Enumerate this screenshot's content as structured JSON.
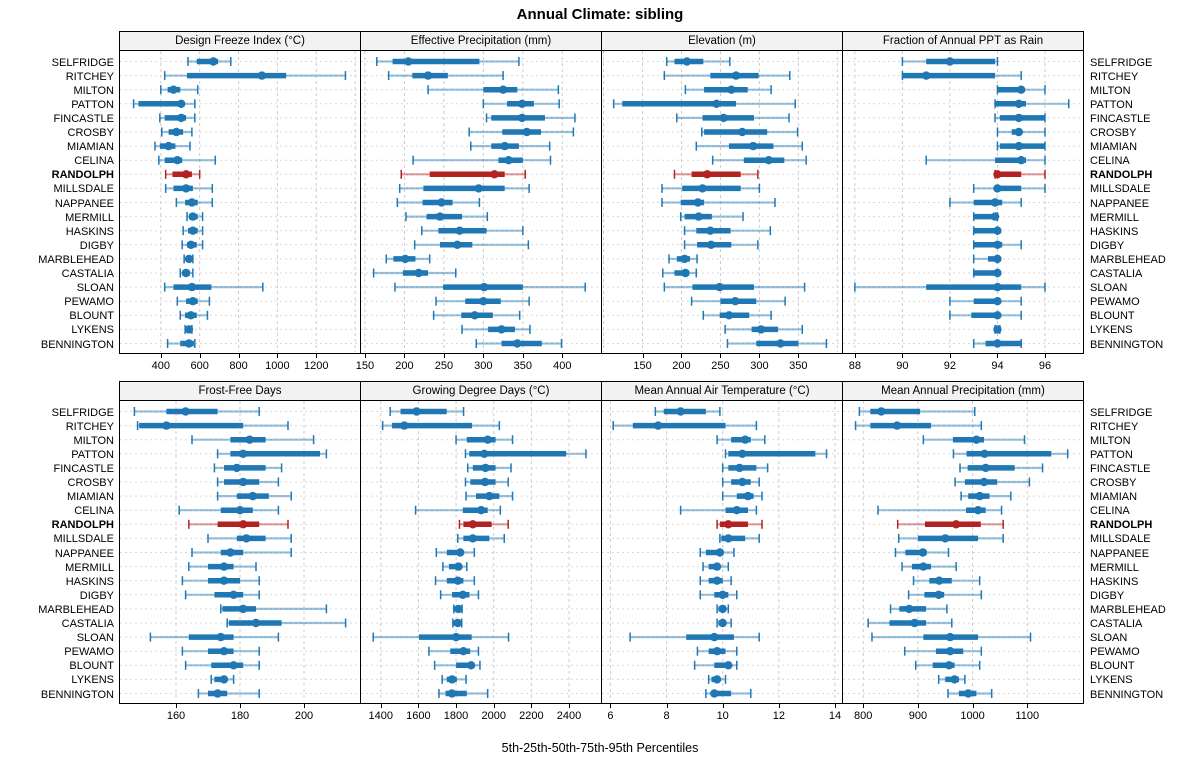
{
  "title": "Annual Climate: sibling",
  "caption": "5th-25th-50th-75th-95th Percentiles",
  "highlight_site": "RANDOLPH",
  "sites": [
    "SELFRIDGE",
    "RITCHEY",
    "MILTON",
    "PATTON",
    "FINCASTLE",
    "CROSBY",
    "MIAMIAN",
    "CELINA",
    "RANDOLPH",
    "MILLSDALE",
    "NAPPANEE",
    "MERMILL",
    "HASKINS",
    "DIGBY",
    "MARBLEHEAD",
    "CASTALIA",
    "SLOAN",
    "PEWAMO",
    "BLOUNT",
    "LYKENS",
    "BENNINGTON"
  ],
  "percentiles": [
    5,
    25,
    50,
    75,
    95
  ],
  "colors": {
    "series": "#1f77b4",
    "highlight": "#b22222",
    "grid": "#cccccc",
    "row_grid": "#d9d9d9",
    "strip_bg": "#f2f2f2",
    "border": "#000000"
  },
  "chart_data": [
    {
      "type": "interval",
      "row": 0,
      "col": 0,
      "title": "Design Freeze Index (°C)",
      "xlim": [
        190,
        1425
      ],
      "xticks": [
        400,
        600,
        800,
        1000,
        1200
      ],
      "grid_extra": [
        1400
      ],
      "values": [
        [
          540,
          585,
          670,
          695,
          760
        ],
        [
          420,
          535,
          920,
          1045,
          1350
        ],
        [
          400,
          435,
          465,
          500,
          590
        ],
        [
          260,
          285,
          505,
          515,
          575
        ],
        [
          395,
          420,
          505,
          530,
          575
        ],
        [
          405,
          440,
          480,
          515,
          560
        ],
        [
          370,
          395,
          440,
          475,
          550
        ],
        [
          390,
          420,
          485,
          510,
          680
        ],
        [
          425,
          460,
          530,
          560,
          600
        ],
        [
          425,
          465,
          530,
          565,
          665
        ],
        [
          480,
          525,
          560,
          590,
          665
        ],
        [
          535,
          545,
          565,
          590,
          615
        ],
        [
          515,
          540,
          565,
          590,
          615
        ],
        [
          510,
          535,
          555,
          585,
          615
        ],
        [
          520,
          530,
          545,
          555,
          565
        ],
        [
          500,
          510,
          530,
          550,
          565
        ],
        [
          420,
          465,
          560,
          660,
          925
        ],
        [
          485,
          530,
          565,
          590,
          650
        ],
        [
          500,
          525,
          555,
          585,
          640
        ],
        [
          525,
          535,
          545,
          555,
          560
        ],
        [
          435,
          500,
          545,
          570,
          575
        ]
      ]
    },
    {
      "type": "interval",
      "row": 0,
      "col": 1,
      "title": "Effective Precipitation (mm)",
      "xlim": [
        145,
        449
      ],
      "xticks": [
        150,
        200,
        250,
        300,
        350,
        400
      ],
      "grid_extra": [],
      "values": [
        [
          165,
          185,
          205,
          295,
          345
        ],
        [
          180,
          210,
          230,
          255,
          325
        ],
        [
          230,
          300,
          325,
          343,
          395
        ],
        [
          300,
          330,
          349,
          364,
          396
        ],
        [
          304,
          310,
          349,
          378,
          416
        ],
        [
          282,
          324,
          355,
          373,
          414
        ],
        [
          284,
          310,
          327,
          345,
          384
        ],
        [
          211,
          319,
          332,
          350,
          385
        ],
        [
          196,
          232,
          314,
          327,
          353
        ],
        [
          194,
          224,
          294,
          327,
          358
        ],
        [
          191,
          223,
          247,
          261,
          295
        ],
        [
          202,
          228,
          245,
          273,
          305
        ],
        [
          222,
          243,
          270,
          304,
          350
        ],
        [
          213,
          245,
          267,
          286,
          357
        ],
        [
          177,
          186,
          201,
          214,
          232
        ],
        [
          161,
          198,
          218,
          230,
          265
        ],
        [
          188,
          249,
          301,
          350,
          429
        ],
        [
          240,
          277,
          300,
          322,
          358
        ],
        [
          237,
          272,
          289,
          312,
          346
        ],
        [
          273,
          306,
          323,
          340,
          359
        ],
        [
          291,
          323,
          343,
          374,
          399
        ]
      ]
    },
    {
      "type": "interval",
      "row": 0,
      "col": 2,
      "title": "Elevation (m)",
      "xlim": [
        98,
        406
      ],
      "xticks": [
        150,
        200,
        250,
        300,
        350
      ],
      "grid_extra": [
        100,
        400
      ],
      "values": [
        [
          181,
          191,
          207,
          228,
          262
        ],
        [
          178,
          237,
          270,
          299,
          339
        ],
        [
          205,
          229,
          264,
          285,
          315
        ],
        [
          113,
          124,
          245,
          270,
          346
        ],
        [
          194,
          227,
          254,
          293,
          338
        ],
        [
          226,
          229,
          278,
          310,
          349
        ],
        [
          219,
          261,
          292,
          318,
          355
        ],
        [
          240,
          280,
          312,
          332,
          360
        ],
        [
          191,
          213,
          233,
          276,
          298
        ],
        [
          175,
          201,
          227,
          276,
          300
        ],
        [
          175,
          199,
          221,
          229,
          320
        ],
        [
          199,
          204,
          222,
          239,
          279
        ],
        [
          204,
          219,
          237,
          263,
          314
        ],
        [
          204,
          220,
          238,
          264,
          298
        ],
        [
          184,
          194,
          204,
          211,
          220
        ],
        [
          176,
          191,
          205,
          210,
          219
        ],
        [
          178,
          214,
          249,
          293,
          358
        ],
        [
          213,
          250,
          269,
          296,
          333
        ],
        [
          228,
          249,
          261,
          287,
          315
        ],
        [
          256,
          290,
          302,
          324,
          355
        ],
        [
          259,
          296,
          327,
          350,
          386
        ]
      ]
    },
    {
      "type": "interval",
      "row": 0,
      "col": 3,
      "title": "Fraction of Annual PPT as Rain",
      "xlim": [
        87.5,
        97.6
      ],
      "xticks": [
        88,
        90,
        92,
        94,
        96
      ],
      "grid_extra": [],
      "values": [
        [
          90,
          91,
          92,
          93.9,
          94
        ],
        [
          90,
          90,
          91,
          93.9,
          95
        ],
        [
          94,
          94,
          95,
          95.1,
          96
        ],
        [
          93.9,
          93.9,
          94.9,
          95.2,
          97
        ],
        [
          93.9,
          94.1,
          94.9,
          96,
          96
        ],
        [
          94,
          94.6,
          94.9,
          95,
          96
        ],
        [
          94,
          94.1,
          94.9,
          96,
          96
        ],
        [
          91,
          93.9,
          95,
          95.2,
          96
        ],
        [
          93.9,
          93.9,
          94,
          95,
          96
        ],
        [
          93,
          93.9,
          94,
          95,
          96
        ],
        [
          92,
          93,
          93.9,
          94.2,
          95
        ],
        [
          93,
          93,
          93.9,
          94,
          94
        ],
        [
          93,
          93,
          94,
          94,
          94
        ],
        [
          93,
          93,
          94,
          94.2,
          95
        ],
        [
          93,
          93.6,
          94,
          94,
          94
        ],
        [
          93,
          93,
          94,
          94,
          94
        ],
        [
          88,
          91,
          94,
          95,
          96
        ],
        [
          92,
          93,
          94,
          94,
          95
        ],
        [
          92,
          92.9,
          94,
          94,
          95
        ],
        [
          93.9,
          94,
          94,
          94,
          94.1
        ],
        [
          93,
          93.5,
          94,
          95,
          95
        ]
      ]
    },
    {
      "type": "interval",
      "row": 1,
      "col": 0,
      "title": "Frost-Free Days",
      "xlim": [
        142.5,
        217.5
      ],
      "xticks": [
        160,
        180,
        200
      ],
      "grid_extra": [],
      "values": [
        [
          147,
          157,
          163,
          173,
          186
        ],
        [
          148,
          148.5,
          157,
          181,
          195
        ],
        [
          165,
          177,
          183,
          188,
          203
        ],
        [
          173,
          177,
          181,
          205,
          207
        ],
        [
          172,
          175,
          179,
          188,
          193
        ],
        [
          173,
          175,
          181,
          186,
          192
        ],
        [
          173,
          179,
          184,
          189,
          196
        ],
        [
          161,
          174,
          180,
          184,
          192
        ],
        [
          164,
          173,
          181,
          186,
          195
        ],
        [
          170,
          179,
          182,
          188,
          196
        ],
        [
          165,
          174,
          177,
          181,
          196
        ],
        [
          164,
          170,
          175,
          178,
          185
        ],
        [
          162,
          170,
          175,
          180,
          186
        ],
        [
          163,
          172,
          178,
          181,
          186
        ],
        [
          174,
          174.5,
          181,
          185,
          207
        ],
        [
          176,
          176.5,
          185,
          193,
          213
        ],
        [
          152,
          164,
          174,
          178,
          192
        ],
        [
          162,
          170,
          175,
          178,
          186
        ],
        [
          163,
          171,
          178,
          181,
          186
        ],
        [
          171,
          172,
          175,
          176,
          178
        ],
        [
          167,
          170,
          173,
          176,
          186
        ]
      ]
    },
    {
      "type": "interval",
      "row": 1,
      "col": 1,
      "title": "Growing Degree Days (°C)",
      "xlim": [
        1295,
        2570
      ],
      "xticks": [
        1400,
        1600,
        1800,
        2000,
        2200,
        2400
      ],
      "grid_extra": [],
      "values": [
        [
          1450,
          1505,
          1590,
          1750,
          1840
        ],
        [
          1410,
          1460,
          1525,
          1885,
          2030
        ],
        [
          1800,
          1857,
          1968,
          2010,
          2100
        ],
        [
          1850,
          1870,
          1950,
          2385,
          2490
        ],
        [
          1862,
          1889,
          1956,
          2010,
          2092
        ],
        [
          1850,
          1876,
          1954,
          2010,
          2077
        ],
        [
          1853,
          1906,
          1977,
          2030,
          2100
        ],
        [
          1585,
          1836,
          1933,
          1968,
          2035
        ],
        [
          1818,
          1839,
          1889,
          1989,
          2077
        ],
        [
          1809,
          1839,
          1889,
          1977,
          2056
        ],
        [
          1695,
          1751,
          1822,
          1836,
          1897
        ],
        [
          1730,
          1762,
          1813,
          1827,
          1857
        ],
        [
          1691,
          1751,
          1809,
          1839,
          1897
        ],
        [
          1718,
          1779,
          1836,
          1871,
          1919
        ],
        [
          1788,
          1792,
          1813,
          1827,
          1832
        ],
        [
          1783,
          1786,
          1809,
          1823,
          1830
        ],
        [
          1360,
          1603,
          1800,
          1883,
          2079
        ],
        [
          1656,
          1769,
          1839,
          1875,
          1919
        ],
        [
          1686,
          1800,
          1880,
          1897,
          1927
        ],
        [
          1726,
          1751,
          1779,
          1804,
          1853
        ],
        [
          1709,
          1744,
          1778,
          1857,
          1968
        ]
      ]
    },
    {
      "type": "interval",
      "row": 1,
      "col": 2,
      "title": "Mean Annual Air Temperature (°C)",
      "xlim": [
        5.7,
        14.25
      ],
      "xticks": [
        6,
        8,
        10,
        12,
        14
      ],
      "grid_extra": [],
      "values": [
        [
          7.6,
          7.9,
          8.5,
          9.4,
          9.9
        ],
        [
          6.1,
          6.8,
          7.7,
          10.1,
          11.2
        ],
        [
          9.8,
          10.3,
          10.8,
          11.0,
          11.5
        ],
        [
          10.1,
          10.2,
          10.7,
          13.3,
          13.7
        ],
        [
          10.0,
          10.2,
          10.6,
          11.2,
          11.6
        ],
        [
          10.0,
          10.3,
          10.7,
          11.0,
          11.3
        ],
        [
          10.0,
          10.5,
          10.9,
          11.1,
          11.4
        ],
        [
          8.5,
          10.1,
          10.5,
          10.9,
          11.2
        ],
        [
          9.8,
          9.9,
          10.2,
          10.9,
          11.4
        ],
        [
          9.9,
          9.95,
          10.2,
          10.8,
          11.3
        ],
        [
          9.2,
          9.4,
          9.9,
          10.0,
          10.4
        ],
        [
          9.3,
          9.5,
          9.8,
          9.9,
          10.2
        ],
        [
          9.2,
          9.5,
          9.8,
          10.0,
          10.3
        ],
        [
          9.2,
          9.7,
          10.0,
          10.2,
          10.5
        ],
        [
          9.8,
          9.85,
          10.0,
          10.1,
          10.2
        ],
        [
          9.8,
          9.85,
          10.0,
          10.1,
          10.3
        ],
        [
          6.7,
          8.7,
          9.7,
          10.4,
          11.3
        ],
        [
          9.1,
          9.5,
          9.8,
          10.1,
          10.5
        ],
        [
          9.0,
          9.7,
          10.2,
          10.3,
          10.5
        ],
        [
          9.5,
          9.6,
          9.8,
          9.9,
          10.1
        ],
        [
          9.4,
          9.6,
          9.7,
          10.3,
          11.0
        ]
      ]
    },
    {
      "type": "interval",
      "row": 1,
      "col": 3,
      "title": "Mean Annual Precipitation (mm)",
      "xlim": [
        763,
        1202
      ],
      "xticks": [
        800,
        900,
        1000,
        1100
      ],
      "grid_extra": [],
      "values": [
        [
          793,
          813,
          833,
          904,
          1004
        ],
        [
          786,
          813,
          862,
          924,
          1016
        ],
        [
          910,
          964,
          1007,
          1021,
          1095
        ],
        [
          965,
          989,
          1022,
          1144,
          1174
        ],
        [
          977,
          991,
          1024,
          1077,
          1128
        ],
        [
          968,
          986,
          1021,
          1045,
          1104
        ],
        [
          979,
          992,
          1013,
          1031,
          1070
        ],
        [
          827,
          988,
          1010,
          1024,
          1053
        ],
        [
          863,
          913,
          970,
          1015,
          1056
        ],
        [
          865,
          900,
          950,
          1010,
          1056
        ],
        [
          859,
          877,
          909,
          916,
          956
        ],
        [
          871,
          889,
          910,
          924,
          970
        ],
        [
          892,
          921,
          939,
          962,
          1013
        ],
        [
          883,
          912,
          938,
          948,
          1016
        ],
        [
          850,
          866,
          884,
          915,
          953
        ],
        [
          809,
          848,
          894,
          915,
          962
        ],
        [
          816,
          910,
          959,
          1010,
          1106
        ],
        [
          876,
          933,
          959,
          983,
          1016
        ],
        [
          896,
          927,
          957,
          967,
          1013
        ],
        [
          938,
          950,
          967,
          975,
          986
        ],
        [
          955,
          975,
          992,
          1007,
          1035
        ]
      ]
    }
  ]
}
